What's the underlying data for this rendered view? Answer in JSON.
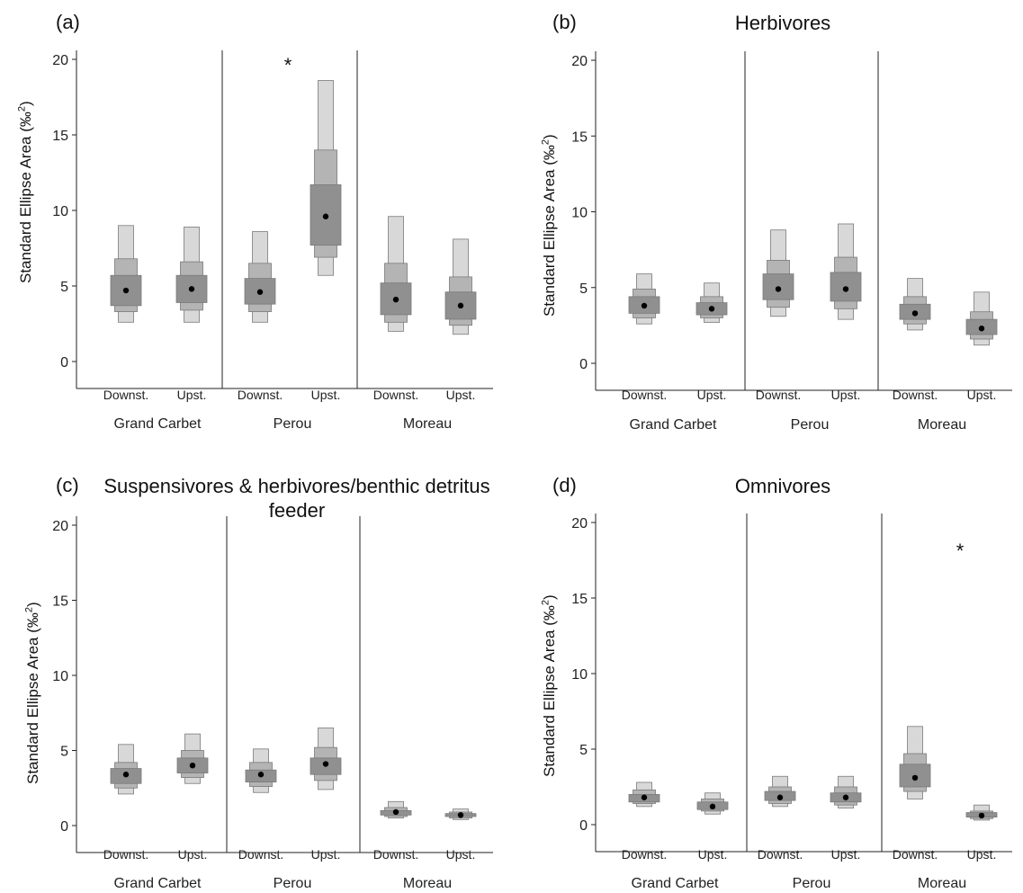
{
  "chart_data": [
    {
      "type": "box",
      "panel_label": "(a)",
      "title": "",
      "ylabel": "Standard Ellipse Area (‰²)",
      "ylim": [
        0,
        20
      ],
      "yticks": [
        0,
        5,
        10,
        15,
        20
      ],
      "categories": [
        "Downst.",
        "Upst.",
        "Downst.",
        "Upst.",
        "Downst.",
        "Upst."
      ],
      "groups": [
        "Grand Carbet",
        "Perou",
        "Moreau"
      ],
      "significance_marker": {
        "text": "*",
        "group": "Perou"
      },
      "series": [
        {
          "category": "Downst.",
          "group": "Grand Carbet",
          "ci95": [
            2.6,
            9.0
          ],
          "ci75": [
            3.3,
            6.8
          ],
          "ci50": [
            3.7,
            5.7
          ],
          "mode": 4.7
        },
        {
          "category": "Upst.",
          "group": "Grand Carbet",
          "ci95": [
            2.6,
            8.9
          ],
          "ci75": [
            3.4,
            6.6
          ],
          "ci50": [
            3.9,
            5.7
          ],
          "mode": 4.8
        },
        {
          "category": "Downst.",
          "group": "Perou",
          "ci95": [
            2.6,
            8.6
          ],
          "ci75": [
            3.3,
            6.5
          ],
          "ci50": [
            3.8,
            5.5
          ],
          "mode": 4.6
        },
        {
          "category": "Upst.",
          "group": "Perou",
          "ci95": [
            5.7,
            18.6
          ],
          "ci75": [
            6.9,
            14.0
          ],
          "ci50": [
            7.7,
            11.7
          ],
          "mode": 9.6
        },
        {
          "category": "Downst.",
          "group": "Moreau",
          "ci95": [
            2.0,
            9.6
          ],
          "ci75": [
            2.6,
            6.5
          ],
          "ci50": [
            3.1,
            5.2
          ],
          "mode": 4.1
        },
        {
          "category": "Upst.",
          "group": "Moreau",
          "ci95": [
            1.8,
            8.1
          ],
          "ci75": [
            2.4,
            5.6
          ],
          "ci50": [
            2.8,
            4.6
          ],
          "mode": 3.7
        }
      ]
    },
    {
      "type": "box",
      "panel_label": "(b)",
      "title": "Herbivores",
      "ylabel": "Standard Ellipse Area (‰²)",
      "ylim": [
        0,
        20
      ],
      "yticks": [
        0,
        5,
        10,
        15,
        20
      ],
      "categories": [
        "Downst.",
        "Upst.",
        "Downst.",
        "Upst.",
        "Downst.",
        "Upst."
      ],
      "groups": [
        "Grand Carbet",
        "Perou",
        "Moreau"
      ],
      "significance_marker": null,
      "series": [
        {
          "category": "Downst.",
          "group": "Grand Carbet",
          "ci95": [
            2.6,
            5.9
          ],
          "ci75": [
            3.0,
            4.9
          ],
          "ci50": [
            3.3,
            4.4
          ],
          "mode": 3.8
        },
        {
          "category": "Upst.",
          "group": "Grand Carbet",
          "ci95": [
            2.7,
            5.3
          ],
          "ci75": [
            3.0,
            4.4
          ],
          "ci50": [
            3.2,
            4.0
          ],
          "mode": 3.6
        },
        {
          "category": "Downst.",
          "group": "Perou",
          "ci95": [
            3.1,
            8.8
          ],
          "ci75": [
            3.7,
            6.8
          ],
          "ci50": [
            4.2,
            5.9
          ],
          "mode": 4.9
        },
        {
          "category": "Upst.",
          "group": "Perou",
          "ci95": [
            2.9,
            9.2
          ],
          "ci75": [
            3.6,
            7.0
          ],
          "ci50": [
            4.1,
            6.0
          ],
          "mode": 4.9
        },
        {
          "category": "Downst.",
          "group": "Moreau",
          "ci95": [
            2.2,
            5.6
          ],
          "ci75": [
            2.6,
            4.4
          ],
          "ci50": [
            2.9,
            3.9
          ],
          "mode": 3.3
        },
        {
          "category": "Upst.",
          "group": "Moreau",
          "ci95": [
            1.2,
            4.7
          ],
          "ci75": [
            1.6,
            3.4
          ],
          "ci50": [
            1.9,
            2.9
          ],
          "mode": 2.3
        }
      ]
    },
    {
      "type": "box",
      "panel_label": "(c)",
      "title": "Suspensivores & herbivores/benthic detritus feeder",
      "ylabel": "Standard Ellipse Area (‰²)",
      "ylim": [
        0,
        20
      ],
      "yticks": [
        0,
        5,
        10,
        15,
        20
      ],
      "categories": [
        "Downst.",
        "Upst.",
        "Downst.",
        "Upst.",
        "Downst.",
        "Upst."
      ],
      "groups": [
        "Grand Carbet",
        "Perou",
        "Moreau"
      ],
      "significance_marker": null,
      "series": [
        {
          "category": "Downst.",
          "group": "Grand Carbet",
          "ci95": [
            2.1,
            5.4
          ],
          "ci75": [
            2.5,
            4.2
          ],
          "ci50": [
            2.8,
            3.8
          ],
          "mode": 3.4
        },
        {
          "category": "Upst.",
          "group": "Grand Carbet",
          "ci95": [
            2.8,
            6.1
          ],
          "ci75": [
            3.2,
            5.0
          ],
          "ci50": [
            3.5,
            4.5
          ],
          "mode": 4.0
        },
        {
          "category": "Downst.",
          "group": "Perou",
          "ci95": [
            2.2,
            5.1
          ],
          "ci75": [
            2.6,
            4.2
          ],
          "ci50": [
            2.9,
            3.7
          ],
          "mode": 3.4
        },
        {
          "category": "Upst.",
          "group": "Perou",
          "ci95": [
            2.4,
            6.5
          ],
          "ci75": [
            3.0,
            5.2
          ],
          "ci50": [
            3.4,
            4.5
          ],
          "mode": 4.1
        },
        {
          "category": "Downst.",
          "group": "Moreau",
          "ci95": [
            0.5,
            1.6
          ],
          "ci75": [
            0.6,
            1.2
          ],
          "ci50": [
            0.7,
            1.0
          ],
          "mode": 0.9
        },
        {
          "category": "Upst.",
          "group": "Moreau",
          "ci95": [
            0.4,
            1.1
          ],
          "ci75": [
            0.5,
            0.9
          ],
          "ci50": [
            0.6,
            0.8
          ],
          "mode": 0.7
        }
      ]
    },
    {
      "type": "box",
      "panel_label": "(d)",
      "title": "Omnivores",
      "ylabel": "Standard Ellipse Area (‰²)",
      "ylim": [
        0,
        20
      ],
      "yticks": [
        0,
        5,
        10,
        15,
        20
      ],
      "categories": [
        "Downst.",
        "Upst.",
        "Downst.",
        "Upst.",
        "Downst.",
        "Upst."
      ],
      "groups": [
        "Grand Carbet",
        "Perou",
        "Moreau"
      ],
      "significance_marker": {
        "text": "*",
        "group": "Moreau"
      },
      "series": [
        {
          "category": "Downst.",
          "group": "Grand Carbet",
          "ci95": [
            1.2,
            2.8
          ],
          "ci75": [
            1.4,
            2.3
          ],
          "ci50": [
            1.5,
            2.0
          ],
          "mode": 1.8
        },
        {
          "category": "Upst.",
          "group": "Grand Carbet",
          "ci95": [
            0.7,
            2.1
          ],
          "ci75": [
            0.9,
            1.7
          ],
          "ci50": [
            1.0,
            1.5
          ],
          "mode": 1.2
        },
        {
          "category": "Downst.",
          "group": "Perou",
          "ci95": [
            1.2,
            3.2
          ],
          "ci75": [
            1.4,
            2.5
          ],
          "ci50": [
            1.6,
            2.2
          ],
          "mode": 1.8
        },
        {
          "category": "Upst.",
          "group": "Perou",
          "ci95": [
            1.1,
            3.2
          ],
          "ci75": [
            1.3,
            2.5
          ],
          "ci50": [
            1.5,
            2.1
          ],
          "mode": 1.8
        },
        {
          "category": "Downst.",
          "group": "Moreau",
          "ci95": [
            1.7,
            6.5
          ],
          "ci75": [
            2.2,
            4.7
          ],
          "ci50": [
            2.5,
            4.0
          ],
          "mode": 3.1
        },
        {
          "category": "Upst.",
          "group": "Moreau",
          "ci95": [
            0.3,
            1.3
          ],
          "ci75": [
            0.4,
            0.9
          ],
          "ci50": [
            0.5,
            0.8
          ],
          "mode": 0.6
        }
      ]
    }
  ],
  "colors": {
    "ci95": "#d8d8d8",
    "ci75": "#b4b4b4",
    "ci50": "#909090",
    "mode": "#000000",
    "axis": "#222222"
  }
}
